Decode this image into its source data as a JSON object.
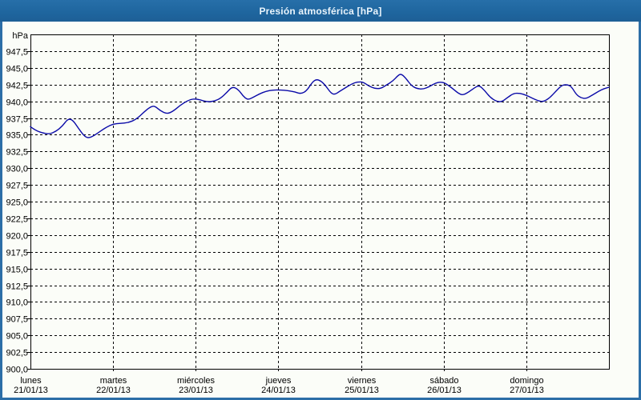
{
  "window": {
    "title": "Presión atmosférica [hPa]"
  },
  "colors": {
    "titlebar_bg": "#1f669f",
    "titlebar_text": "#e9f4fc",
    "page_border": "#2c6ea7",
    "plot_border": "#000000",
    "grid": "#000000",
    "series_line": "#0a0aa8",
    "label_text": "#000000",
    "background": "#fbfdf8"
  },
  "chart_data": {
    "type": "line",
    "title": "Presión atmosférica [hPa]",
    "ylabel": "hPa",
    "xlabel": "",
    "grid": true,
    "legend_position": "none",
    "ylim": [
      900,
      950
    ],
    "ytick_step": 2.5,
    "yticks": [
      {
        "value": 947.5,
        "label": "947,5"
      },
      {
        "value": 945.0,
        "label": "945,0"
      },
      {
        "value": 942.5,
        "label": "942,5"
      },
      {
        "value": 940.0,
        "label": "940,0"
      },
      {
        "value": 937.5,
        "label": "937,5"
      },
      {
        "value": 935.0,
        "label": "935,0"
      },
      {
        "value": 932.5,
        "label": "932,5"
      },
      {
        "value": 930.0,
        "label": "930,0"
      },
      {
        "value": 927.5,
        "label": "927,5"
      },
      {
        "value": 925.0,
        "label": "925,0"
      },
      {
        "value": 922.5,
        "label": "922,5"
      },
      {
        "value": 920.0,
        "label": "920,0"
      },
      {
        "value": 917.5,
        "label": "917,5"
      },
      {
        "value": 915.0,
        "label": "915,0"
      },
      {
        "value": 912.5,
        "label": "912,5"
      },
      {
        "value": 910.0,
        "label": "910,0"
      },
      {
        "value": 907.5,
        "label": "907,5"
      },
      {
        "value": 905.0,
        "label": "905,0"
      },
      {
        "value": 902.5,
        "label": "902,5"
      },
      {
        "value": 900.0,
        "label": "900,0"
      }
    ],
    "x_range_hours": [
      0,
      168
    ],
    "days": [
      {
        "name": "lunes",
        "date": "21/01/13",
        "start_hour": 0
      },
      {
        "name": "martes",
        "date": "22/01/13",
        "start_hour": 24
      },
      {
        "name": "miércoles",
        "date": "23/01/13",
        "start_hour": 48
      },
      {
        "name": "jueves",
        "date": "24/01/13",
        "start_hour": 72
      },
      {
        "name": "viernes",
        "date": "25/01/13",
        "start_hour": 96
      },
      {
        "name": "sábado",
        "date": "26/01/13",
        "start_hour": 120
      },
      {
        "name": "domingo",
        "date": "27/01/13",
        "start_hour": 144
      }
    ],
    "series": [
      {
        "name": "Presión atmosférica",
        "unit": "hPa",
        "color": "#0a0aa8",
        "points": [
          [
            0,
            936.2
          ],
          [
            1.6,
            935.6
          ],
          [
            4,
            935.2
          ],
          [
            5.6,
            935.1
          ],
          [
            7.4,
            935.5
          ],
          [
            9.3,
            936.3
          ],
          [
            10.9,
            937.4
          ],
          [
            12.3,
            937.2
          ],
          [
            14,
            935.9
          ],
          [
            15.8,
            934.7
          ],
          [
            17,
            934.5
          ],
          [
            18.6,
            934.9
          ],
          [
            20.5,
            935.6
          ],
          [
            22.3,
            936.2
          ],
          [
            24,
            936.6
          ],
          [
            26.1,
            936.7
          ],
          [
            28.4,
            936.8
          ],
          [
            30.7,
            937.3
          ],
          [
            33,
            938.4
          ],
          [
            34.9,
            939.2
          ],
          [
            36.1,
            939.3
          ],
          [
            37.7,
            938.6
          ],
          [
            39.6,
            938.1
          ],
          [
            41.4,
            938.5
          ],
          [
            43.5,
            939.4
          ],
          [
            45.6,
            940.1
          ],
          [
            47.5,
            940.4
          ],
          [
            49.3,
            940.2
          ],
          [
            51.4,
            939.9
          ],
          [
            53.3,
            940.0
          ],
          [
            55.1,
            940.4
          ],
          [
            57,
            941.3
          ],
          [
            58.6,
            942.2
          ],
          [
            60.3,
            941.8
          ],
          [
            61.7,
            940.8
          ],
          [
            63.1,
            940.2
          ],
          [
            64.7,
            940.6
          ],
          [
            66.5,
            941.1
          ],
          [
            68.4,
            941.5
          ],
          [
            70.5,
            941.7
          ],
          [
            72.6,
            941.7
          ],
          [
            74.7,
            941.6
          ],
          [
            76.8,
            941.4
          ],
          [
            78.6,
            941.1
          ],
          [
            80.3,
            941.6
          ],
          [
            81.9,
            942.9
          ],
          [
            83.1,
            943.3
          ],
          [
            84.5,
            943.0
          ],
          [
            85.9,
            942.2
          ],
          [
            87.3,
            941.2
          ],
          [
            88.4,
            941.0
          ],
          [
            89.8,
            941.5
          ],
          [
            91.4,
            942.0
          ],
          [
            93.3,
            942.6
          ],
          [
            94.9,
            942.9
          ],
          [
            96.6,
            942.9
          ],
          [
            98.2,
            942.3
          ],
          [
            100,
            941.9
          ],
          [
            101.7,
            941.9
          ],
          [
            103.3,
            942.4
          ],
          [
            105.2,
            943.0
          ],
          [
            106.8,
            943.9
          ],
          [
            107.7,
            944.1
          ],
          [
            109.1,
            943.4
          ],
          [
            110.5,
            942.4
          ],
          [
            112.1,
            941.9
          ],
          [
            114,
            941.8
          ],
          [
            115.9,
            942.2
          ],
          [
            117.5,
            942.7
          ],
          [
            119.1,
            942.9
          ],
          [
            120.5,
            942.7
          ],
          [
            122.4,
            942.0
          ],
          [
            124.2,
            941.2
          ],
          [
            125.6,
            940.9
          ],
          [
            127.3,
            941.4
          ],
          [
            128.9,
            942.0
          ],
          [
            130.3,
            942.4
          ],
          [
            131.9,
            941.6
          ],
          [
            133.5,
            940.6
          ],
          [
            135.2,
            940.0
          ],
          [
            136.8,
            939.9
          ],
          [
            138.4,
            940.5
          ],
          [
            140.3,
            941.2
          ],
          [
            142.2,
            941.2
          ],
          [
            144,
            940.9
          ],
          [
            145.6,
            940.5
          ],
          [
            147.3,
            940.1
          ],
          [
            148.9,
            939.9
          ],
          [
            150.8,
            940.5
          ],
          [
            152.6,
            941.5
          ],
          [
            154.3,
            942.4
          ],
          [
            155.9,
            942.5
          ],
          [
            157.1,
            942.2
          ],
          [
            158.5,
            941.0
          ],
          [
            159.9,
            940.5
          ],
          [
            161.3,
            940.4
          ],
          [
            163.1,
            940.9
          ],
          [
            165,
            941.5
          ],
          [
            166.6,
            941.9
          ],
          [
            168,
            942.1
          ]
        ]
      }
    ]
  }
}
